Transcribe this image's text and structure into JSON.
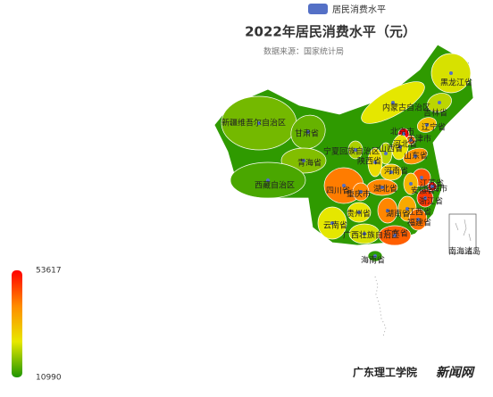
{
  "chart_data": {
    "type": "map",
    "title": "2022年居民消费水平（元）",
    "subtitle": "数据来源：国家统计局",
    "legend": "居民消费水平",
    "legend_color": "#5470c6",
    "visual_map": {
      "max": 53617,
      "min": 10990,
      "colors": [
        "#1f9600",
        "#e8e800",
        "#ff8c00",
        "#ff0000"
      ]
    },
    "inset_label": "南海诸岛",
    "watermark": [
      "广东理工学院",
      "新闻网"
    ],
    "regions": [
      {
        "name": "黑龙江省",
        "value": 24000
      },
      {
        "name": "吉林省",
        "value": 22000
      },
      {
        "name": "辽宁省",
        "value": 32000
      },
      {
        "name": "内蒙古自治区",
        "value": 25000
      },
      {
        "name": "新疆维吾尔自治区",
        "value": 17000
      },
      {
        "name": "甘肃省",
        "value": 16000
      },
      {
        "name": "宁夏回族自治区",
        "value": 21000
      },
      {
        "name": "青海省",
        "value": 18000
      },
      {
        "name": "西藏自治区",
        "value": 14000
      },
      {
        "name": "北京市",
        "value": 53617
      },
      {
        "name": "天津市",
        "value": 42000
      },
      {
        "name": "河北省",
        "value": 26000
      },
      {
        "name": "山西省",
        "value": 22000
      },
      {
        "name": "陕西省",
        "value": 27000
      },
      {
        "name": "山东省",
        "value": 38000
      },
      {
        "name": "河南省",
        "value": 30000
      },
      {
        "name": "江苏省",
        "value": 45000
      },
      {
        "name": "安徽省",
        "value": 33000
      },
      {
        "name": "上海市",
        "value": 52000
      },
      {
        "name": "湖北省",
        "value": 40000
      },
      {
        "name": "四川省",
        "value": 41000
      },
      {
        "name": "重庆市",
        "value": 40000
      },
      {
        "name": "浙江省",
        "value": 48000
      },
      {
        "name": "贵州省",
        "value": 26000
      },
      {
        "name": "湖南省",
        "value": 40000
      },
      {
        "name": "江西省",
        "value": 35000
      },
      {
        "name": "福建省",
        "value": 42000
      },
      {
        "name": "云南省",
        "value": 25000
      },
      {
        "name": "广西壮族自治区",
        "value": 24000
      },
      {
        "name": "广东省",
        "value": 44000
      },
      {
        "name": "海南省",
        "value": 12000
      }
    ]
  }
}
